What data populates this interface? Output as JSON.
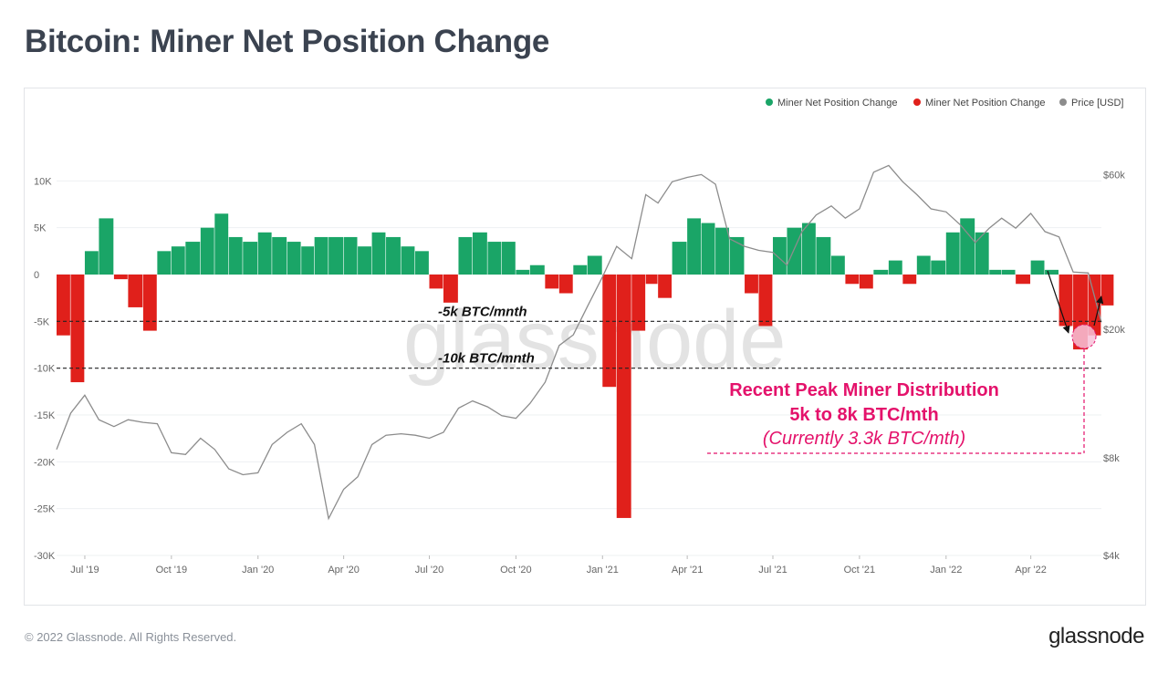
{
  "page": {
    "title": "Bitcoin: Miner Net Position Change",
    "copyright": "© 2022 Glassnode. All Rights Reserved.",
    "logo": "glassnode",
    "watermark": "glassnode"
  },
  "colors": {
    "positive": "#1aa567",
    "negative": "#e0201b",
    "price": "#8c8c8c",
    "annotation": "#e4126b"
  },
  "chart_data": {
    "type": "bar",
    "title": "Bitcoin: Miner Net Position Change",
    "legend_position": "top-right",
    "legend": [
      {
        "label": "Miner Net Position Change",
        "color": "#1aa567"
      },
      {
        "label": "Miner Net Position Change",
        "color": "#e0201b"
      },
      {
        "label": "Price [USD]",
        "color": "#8c8c8c"
      }
    ],
    "x_ticks": [
      "Jul '19",
      "Oct '19",
      "Jan '20",
      "Apr '20",
      "Jul '20",
      "Oct '20",
      "Jan '21",
      "Apr '21",
      "Jul '21",
      "Oct '21",
      "Jan '22",
      "Apr '22"
    ],
    "x_range": [
      "2019-06-01",
      "2022-06-15"
    ],
    "y_left": {
      "ticks": [
        "10K",
        "5K",
        "0",
        "-5K",
        "-10K",
        "-15K",
        "-20K",
        "-25K",
        "-30K"
      ],
      "range": [
        -30000,
        15000
      ]
    },
    "y_right": {
      "ticks": [
        "$60k",
        "$20k",
        "$8k",
        "$4k"
      ],
      "scale": "log",
      "range": [
        4000,
        80000
      ]
    },
    "series": [
      {
        "name": "Miner Net Position Change",
        "type": "bar",
        "x": [
          "2019-06-01",
          "2019-06-16",
          "2019-07-01",
          "2019-07-16",
          "2019-08-01",
          "2019-08-16",
          "2019-09-01",
          "2019-09-16",
          "2019-10-01",
          "2019-10-16",
          "2019-11-01",
          "2019-11-16",
          "2019-12-01",
          "2019-12-16",
          "2020-01-01",
          "2020-01-16",
          "2020-02-01",
          "2020-02-16",
          "2020-03-01",
          "2020-03-16",
          "2020-04-01",
          "2020-04-16",
          "2020-05-01",
          "2020-05-16",
          "2020-06-01",
          "2020-06-16",
          "2020-07-01",
          "2020-07-16",
          "2020-08-01",
          "2020-08-16",
          "2020-09-01",
          "2020-09-16",
          "2020-10-01",
          "2020-10-16",
          "2020-11-01",
          "2020-11-16",
          "2020-12-01",
          "2020-12-16",
          "2021-01-01",
          "2021-01-16",
          "2021-02-01",
          "2021-02-16",
          "2021-03-01",
          "2021-03-16",
          "2021-04-01",
          "2021-04-16",
          "2021-05-01",
          "2021-05-16",
          "2021-06-01",
          "2021-06-16",
          "2021-07-01",
          "2021-07-16",
          "2021-08-01",
          "2021-08-16",
          "2021-09-01",
          "2021-09-16",
          "2021-10-01",
          "2021-10-16",
          "2021-11-01",
          "2021-11-16",
          "2021-12-01",
          "2021-12-16",
          "2022-01-01",
          "2022-01-16",
          "2022-02-01",
          "2022-02-16",
          "2022-03-01",
          "2022-03-16",
          "2022-04-01",
          "2022-04-16",
          "2022-05-01",
          "2022-05-16",
          "2022-06-01",
          "2022-06-15"
        ],
        "values": [
          -6500,
          -11500,
          2500,
          6000,
          -500,
          -3500,
          -6000,
          2500,
          3000,
          3500,
          5000,
          6500,
          4000,
          3500,
          4500,
          4000,
          3500,
          3000,
          4000,
          4000,
          4000,
          3000,
          4500,
          4000,
          3000,
          2500,
          -1500,
          -3000,
          4000,
          4500,
          3500,
          3500,
          500,
          1000,
          -1500,
          -2000,
          1000,
          2000,
          -12000,
          -26000,
          -6000,
          -1000,
          -2500,
          3500,
          6000,
          5500,
          5000,
          4000,
          -2000,
          -5500,
          4000,
          5000,
          5500,
          4000,
          2000,
          -1000,
          -1500,
          500,
          1500,
          -1000,
          2000,
          1500,
          4500,
          6000,
          4500,
          500,
          500,
          -1000,
          1500,
          500,
          -5500,
          -8000,
          -6500,
          -3300
        ]
      },
      {
        "name": "Price [USD]",
        "type": "line",
        "x": [
          "2019-06-01",
          "2019-06-16",
          "2019-07-01",
          "2019-07-16",
          "2019-08-01",
          "2019-08-16",
          "2019-09-01",
          "2019-09-16",
          "2019-10-01",
          "2019-10-16",
          "2019-11-01",
          "2019-11-16",
          "2019-12-01",
          "2019-12-16",
          "2020-01-01",
          "2020-01-16",
          "2020-02-01",
          "2020-02-16",
          "2020-03-01",
          "2020-03-16",
          "2020-04-01",
          "2020-04-16",
          "2020-05-01",
          "2020-05-16",
          "2020-06-01",
          "2020-06-16",
          "2020-07-01",
          "2020-07-16",
          "2020-08-01",
          "2020-08-16",
          "2020-09-01",
          "2020-09-16",
          "2020-10-01",
          "2020-10-16",
          "2020-11-01",
          "2020-11-16",
          "2020-12-01",
          "2020-12-16",
          "2021-01-01",
          "2021-01-16",
          "2021-02-01",
          "2021-02-16",
          "2021-03-01",
          "2021-03-16",
          "2021-04-01",
          "2021-04-16",
          "2021-05-01",
          "2021-05-16",
          "2021-06-01",
          "2021-06-16",
          "2021-07-01",
          "2021-07-16",
          "2021-08-01",
          "2021-08-16",
          "2021-09-01",
          "2021-09-16",
          "2021-10-01",
          "2021-10-16",
          "2021-11-01",
          "2021-11-16",
          "2021-12-01",
          "2021-12-16",
          "2022-01-01",
          "2022-01-16",
          "2022-02-01",
          "2022-02-16",
          "2022-03-01",
          "2022-03-16",
          "2022-04-01",
          "2022-04-16",
          "2022-05-01",
          "2022-05-16",
          "2022-06-01",
          "2022-06-15"
        ],
        "values": [
          8500,
          11000,
          12500,
          10500,
          10000,
          10500,
          10300,
          10200,
          8300,
          8200,
          9200,
          8500,
          7400,
          7100,
          7200,
          8800,
          9600,
          10200,
          8800,
          5200,
          6400,
          7000,
          8800,
          9400,
          9500,
          9400,
          9200,
          9600,
          11400,
          12000,
          11500,
          10800,
          10600,
          11800,
          13700,
          17800,
          19200,
          23500,
          29000,
          36000,
          33000,
          52000,
          49000,
          57000,
          58800,
          60000,
          56000,
          38000,
          36000,
          35000,
          34500,
          31500,
          40000,
          45000,
          48000,
          44000,
          47000,
          61000,
          64000,
          57000,
          52000,
          47000,
          46000,
          42000,
          37000,
          41000,
          44000,
          41000,
          45500,
          40000,
          38500,
          30000,
          29800,
          21000
        ]
      }
    ],
    "reference_lines": [
      {
        "label": "-5k BTC/mnth",
        "value": -5000
      },
      {
        "label": "-10k BTC/mnth",
        "value": -10000
      }
    ],
    "annotation": {
      "line1": "Recent Peak Miner Distribution",
      "line2": "5k to 8k BTC/mth",
      "line3": "(Currently 3.3k BTC/mth)"
    }
  }
}
